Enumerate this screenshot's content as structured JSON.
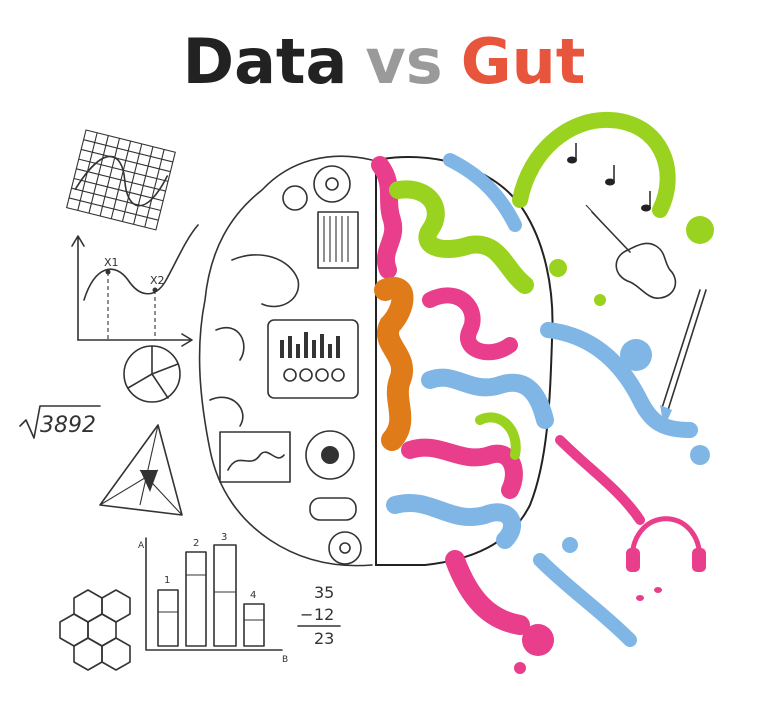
{
  "title": {
    "word1": "Data",
    "word2": "vs",
    "word3": "Gut"
  },
  "colors": {
    "data_text": "#222222",
    "vs_text": "#9a9a9a",
    "gut_text": "#e8553d",
    "pink": "#e83e8c",
    "lime": "#9ad31f",
    "orange": "#e07b1a",
    "blue": "#7fb6e6"
  },
  "sketches": {
    "sqrt_value": "3892",
    "graph_x1": "X1",
    "graph_x2": "X2",
    "bar_labels": [
      "1",
      "2",
      "3",
      "4"
    ],
    "sum_top": "35",
    "sum_mid": "12",
    "sum_result": "23",
    "axis_a": "A",
    "axis_b": "B"
  },
  "icons": [
    "grid-graph-icon",
    "curve-graph-icon",
    "pie-chart-icon",
    "triangle-icon",
    "bar-chart-icon",
    "hexagon-lattice-icon",
    "gear-icon",
    "violin-icon",
    "music-note-icon",
    "paintbrush-icon",
    "headphones-icon",
    "paint-splash-icon"
  ]
}
